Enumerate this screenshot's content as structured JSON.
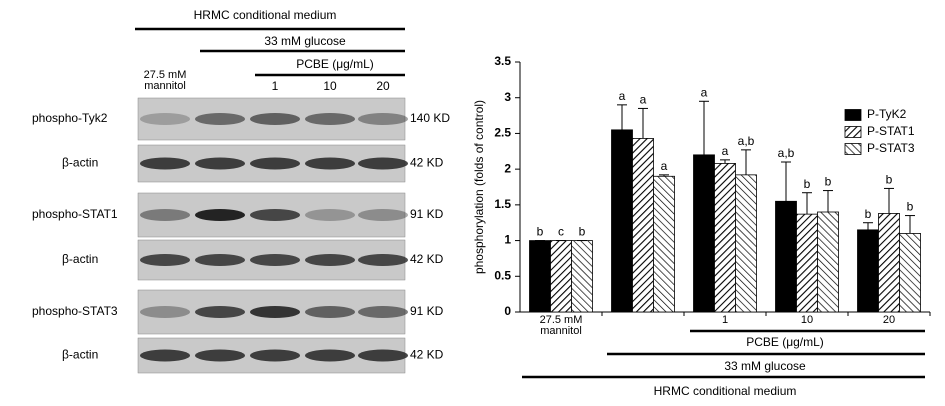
{
  "blot": {
    "headers": [
      "HRMC conditional medium",
      "33 mM glucose",
      "PCBE (μg/mL)"
    ],
    "lanes": [
      "27.5 mM mannitol",
      null,
      "1",
      "10",
      "20"
    ],
    "rows": [
      {
        "label": "phospho-Tyk2",
        "size": "140 KD"
      },
      {
        "label": "β-actin",
        "size": "42 KD"
      },
      {
        "label": "phospho-STAT1",
        "size": "91 KD"
      },
      {
        "label": "β-actin",
        "size": "42 KD"
      },
      {
        "label": "phospho-STAT3",
        "size": "91 KD"
      },
      {
        "label": "β-actin",
        "size": "42 KD"
      }
    ]
  },
  "chart_data": {
    "type": "bar",
    "y_label": "phosphorylation (folds of control)",
    "categories": [
      "27.5 mM mannitol",
      null,
      "1",
      "10",
      "20"
    ],
    "series": [
      {
        "name": "P-TyK2",
        "color": "#000000",
        "pattern": "solid",
        "values": [
          1,
          2.55,
          2.2,
          1.55,
          1.15
        ],
        "errors": [
          0,
          0.35,
          0.75,
          0.55,
          0.1
        ],
        "letters": [
          "b",
          "a",
          "a",
          "a,b",
          "b"
        ]
      },
      {
        "name": "P-STAT1",
        "color": "#000000",
        "pattern": "forward-hatch",
        "values": [
          1,
          2.43,
          2.08,
          1.37,
          1.38
        ],
        "errors": [
          0,
          0.42,
          0.05,
          0.3,
          0.35
        ],
        "letters": [
          "c",
          "a",
          "a",
          "b",
          "b"
        ]
      },
      {
        "name": "P-STAT3",
        "color": "#000000",
        "pattern": "back-hatch",
        "values": [
          1,
          1.9,
          1.92,
          1.4,
          1.1
        ],
        "errors": [
          0,
          0.02,
          0.35,
          0.3,
          0.25
        ],
        "letters": [
          "b",
          "a",
          "a,b",
          "b",
          "b"
        ]
      }
    ],
    "ylim": [
      0,
      3.5
    ],
    "yticks": [
      0,
      0.5,
      1,
      1.5,
      2,
      2.5,
      3,
      3.5
    ],
    "legend": "upper right",
    "group_labels": [
      "PCBE (μg/mL)",
      "33 mM glucose",
      "HRMC conditional medium"
    ]
  }
}
